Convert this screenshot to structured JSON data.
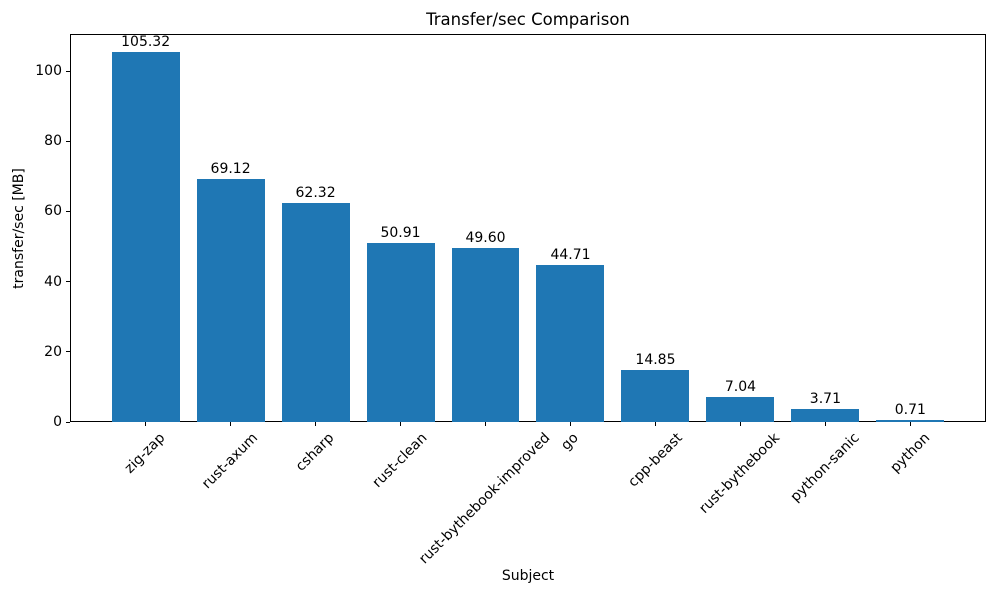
{
  "chart_data": {
    "type": "bar",
    "title": "Transfer/sec Comparison",
    "xlabel": "Subject",
    "ylabel": "transfer/sec [MB]",
    "categories": [
      "zig-zap",
      "rust-axum",
      "csharp",
      "rust-clean",
      "rust-bythebook-improved",
      "go",
      "cpp-beast",
      "rust-bythebook",
      "python-sanic",
      "python"
    ],
    "values": [
      105.32,
      69.12,
      62.32,
      50.91,
      49.6,
      44.71,
      14.85,
      7.04,
      3.71,
      0.71
    ],
    "bar_value_labels": [
      "105.32",
      "69.12",
      "62.32",
      "50.91",
      "49.60",
      "44.71",
      "14.85",
      "7.04",
      "3.71",
      "0.71"
    ],
    "yticks": [
      0,
      20,
      40,
      60,
      80,
      100
    ],
    "ylim": [
      0,
      110.59
    ],
    "x_tick_rotation_deg": 45,
    "grid": false,
    "bar_color": "#1f77b4",
    "axis_color": "#000000",
    "text_color": "#000000",
    "background_color": "#ffffff"
  }
}
